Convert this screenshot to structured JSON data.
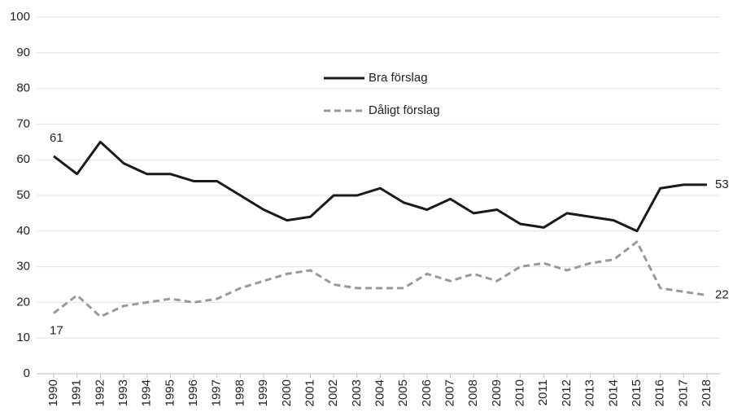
{
  "chart_data": {
    "type": "line",
    "x": [
      1990,
      1991,
      1992,
      1993,
      1994,
      1995,
      1996,
      1997,
      1998,
      1999,
      2000,
      2001,
      2002,
      2003,
      2004,
      2005,
      2006,
      2007,
      2008,
      2009,
      2010,
      2011,
      2012,
      2013,
      2014,
      2015,
      2016,
      2017,
      2018
    ],
    "series": [
      {
        "name": "Bra förslag",
        "color": "#1a1a1a",
        "dash": "solid",
        "values": [
          61,
          56,
          65,
          59,
          56,
          56,
          54,
          54,
          50,
          46,
          43,
          44,
          50,
          50,
          52,
          48,
          46,
          49,
          45,
          46,
          42,
          41,
          45,
          44,
          43,
          40,
          52,
          53,
          53
        ]
      },
      {
        "name": "Dåligt förslag",
        "color": "#999999",
        "dash": "dashed",
        "values": [
          17,
          22,
          16,
          19,
          20,
          21,
          20,
          21,
          24,
          26,
          28,
          29,
          25,
          24,
          24,
          24,
          28,
          26,
          28,
          26,
          30,
          31,
          29,
          31,
          32,
          37,
          24,
          23,
          22
        ]
      }
    ],
    "xlim": [
      1990,
      2018
    ],
    "xticks": [
      1990,
      1991,
      1992,
      1993,
      1994,
      1995,
      1996,
      1997,
      1998,
      1999,
      2000,
      2001,
      2002,
      2003,
      2004,
      2005,
      2006,
      2007,
      2008,
      2009,
      2010,
      2011,
      2012,
      2013,
      2014,
      2015,
      2016,
      2017,
      2018
    ],
    "ylim": [
      0,
      100
    ],
    "yticks": [
      0,
      10,
      20,
      30,
      40,
      50,
      60,
      70,
      80,
      90,
      100
    ],
    "grid": true,
    "legend": "top"
  }
}
